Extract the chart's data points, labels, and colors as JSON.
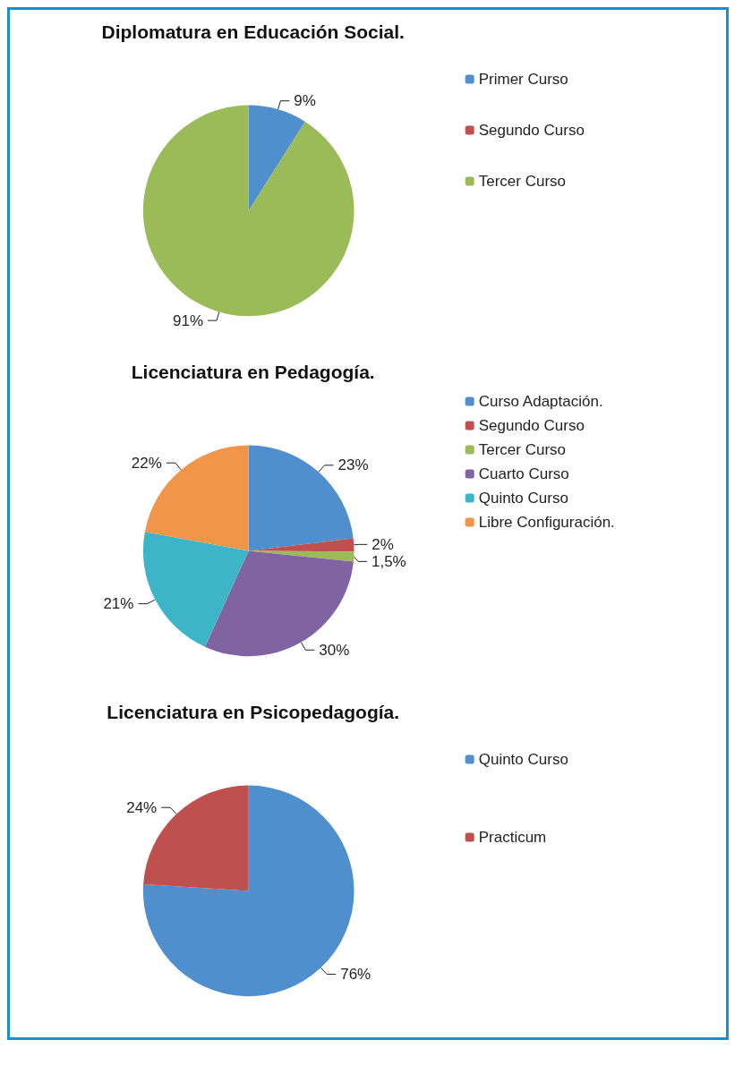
{
  "chart_data": [
    {
      "type": "pie",
      "title": "Diplomatura en Educación Social.",
      "categories": [
        "Primer Curso",
        "Segundo Curso",
        "Tercer Curso"
      ],
      "values": [
        9,
        0,
        91
      ],
      "colors": [
        "#4f8fcd",
        "#c0504d",
        "#9bbb59"
      ],
      "value_labels": [
        "9%",
        null,
        "91%"
      ],
      "legend": "right"
    },
    {
      "type": "pie",
      "title": "Licenciatura en Pedagogía.",
      "categories": [
        "Curso Adaptación.",
        "Segundo Curso",
        "Tercer Curso",
        "Cuarto Curso",
        "Quinto Curso",
        "Libre Configuración."
      ],
      "values": [
        23,
        2,
        1.5,
        30,
        21,
        22
      ],
      "colors": [
        "#4f8fcd",
        "#c0504d",
        "#9bbb59",
        "#8064a2",
        "#3eb4c9",
        "#f0954a"
      ],
      "value_labels": [
        "23%",
        "2%",
        "1,5%",
        "30%",
        "21%",
        "22%"
      ],
      "legend": "right"
    },
    {
      "type": "pie",
      "title": "Licenciatura en Psicopedagogía.",
      "categories": [
        "Quinto Curso",
        "Practicum"
      ],
      "values": [
        76,
        24
      ],
      "colors": [
        "#4f8fcd",
        "#c0504d"
      ],
      "value_labels": [
        "76%",
        "24%"
      ],
      "legend": "right"
    }
  ]
}
